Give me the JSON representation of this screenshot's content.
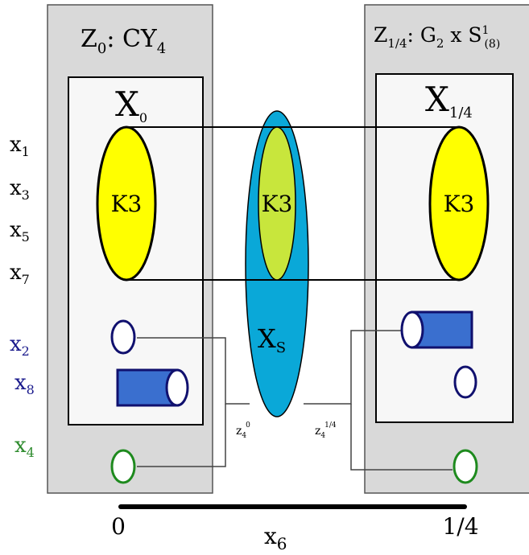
{
  "left_panel": {
    "label_main": "Z",
    "label_sub": "0",
    "label_rest": ": CY",
    "label_rest_sub": "4",
    "inner_main": "X",
    "inner_sub": "0",
    "k3": "K3"
  },
  "right_panel": {
    "label_main": "Z",
    "label_sub": "1/4",
    "label_rest": ": G",
    "label_rest_sub": "2",
    "label_tail": " x S",
    "label_tail_sup": "1",
    "label_tail_sub": "(8)",
    "inner_main": "X",
    "inner_sub": "1/4",
    "k3": "K3"
  },
  "center": {
    "k3": "K3",
    "xs_main": "X",
    "xs_sub": "S",
    "z_left_main": "z",
    "z_left_sub": "4",
    "z_left_sup": "0",
    "z_right_main": "z",
    "z_right_sub": "4",
    "z_right_sup": "1/4"
  },
  "coords": [
    {
      "main": "x",
      "sub": "1",
      "color": "#000000"
    },
    {
      "main": "x",
      "sub": "3",
      "color": "#000000"
    },
    {
      "main": "x",
      "sub": "5",
      "color": "#000000"
    },
    {
      "main": "x",
      "sub": "7",
      "color": "#000000"
    },
    {
      "main": "x",
      "sub": "2",
      "color": "#1a1a8c"
    },
    {
      "main": "x",
      "sub": "8",
      "color": "#1a1a8c"
    },
    {
      "main": "x",
      "sub": "4",
      "color": "#2e8b2e"
    }
  ],
  "axis": {
    "start": "0",
    "end": "1/4",
    "label_main": "x",
    "label_sub": "6"
  },
  "colors": {
    "panel": "#d9d9d9",
    "inner": "#f7f7f7",
    "yellow": "#ffff00",
    "lime": "#c8e63c",
    "cyan": "#0aa8d8",
    "blue_fill": "#3a6fcf",
    "blue_stroke": "#10106e",
    "green": "#1e8a1e"
  }
}
